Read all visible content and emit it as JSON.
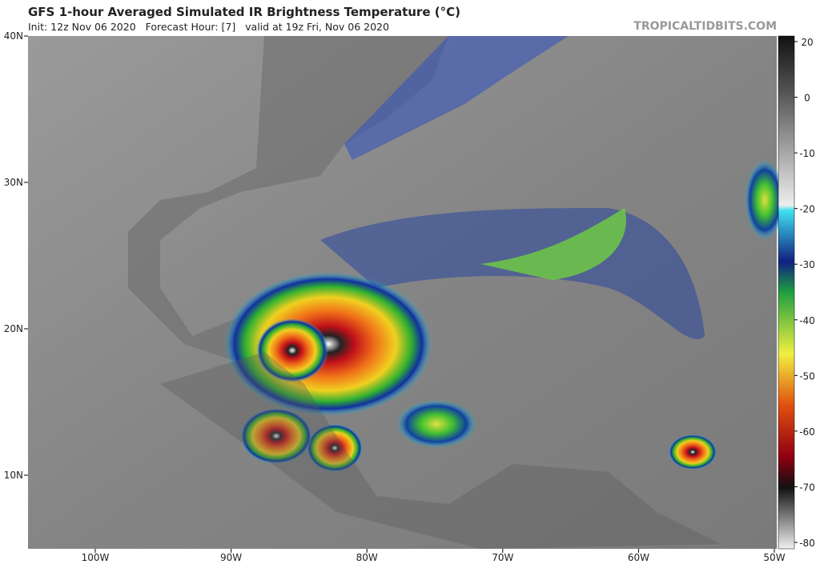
{
  "header": {
    "title": "GFS 1-hour Averaged Simulated IR Brightness Temperature (°C)",
    "subtitle": "Init: 12z Nov 06 2020   Forecast Hour: [7]   valid at 19z Fri, Nov 06 2020",
    "watermark": "TROPICALTIDBITS.COM"
  },
  "map": {
    "lat_labels": [
      "40N",
      "30N",
      "20N",
      "10N"
    ],
    "lon_labels": [
      "100W",
      "90W",
      "80W",
      "70W",
      "60W",
      "50W"
    ]
  },
  "colorbar": {
    "ticks": [
      20,
      0,
      -10,
      -20,
      -30,
      -40,
      -50,
      -60,
      -70,
      -80
    ]
  }
}
